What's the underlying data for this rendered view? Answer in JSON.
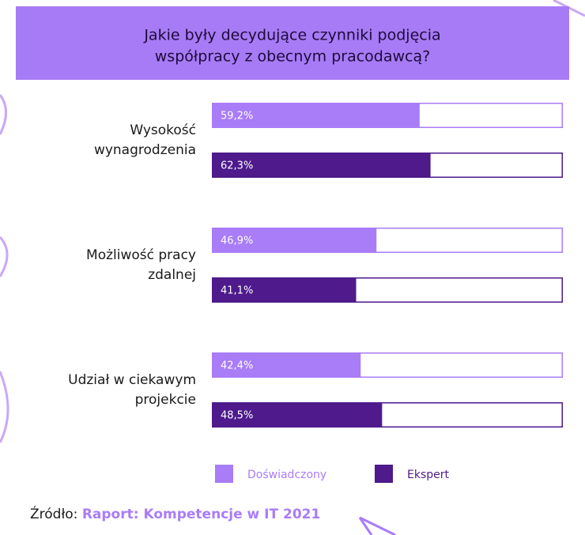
{
  "chart_data": {
    "type": "hbar",
    "title": [
      "Jakie były decydujące czynniki podjęcia",
      "współpracy z obecnym pracodawcą?"
    ],
    "categories": [
      "Wysokość wynagrodzenia",
      "Możliwość pracy zdalnej",
      "Udział w ciekawym projekcie"
    ],
    "series": [
      {
        "name": "Doświadczony",
        "color": "#a97cf8",
        "values": [
          59.2,
          46.9,
          42.4
        ],
        "value_labels": [
          "59,2%",
          "46,9%",
          "42,4%"
        ]
      },
      {
        "name": "Ekspert",
        "color": "#4e1a8c",
        "values": [
          62.3,
          41.1,
          48.5
        ],
        "value_labels": [
          "62,3%",
          "41,1%",
          "48,5%"
        ]
      }
    ],
    "xlim": [
      0,
      100
    ],
    "source_label": "Źródło:",
    "source": "Raport: Kompetencje w IT 2021"
  }
}
